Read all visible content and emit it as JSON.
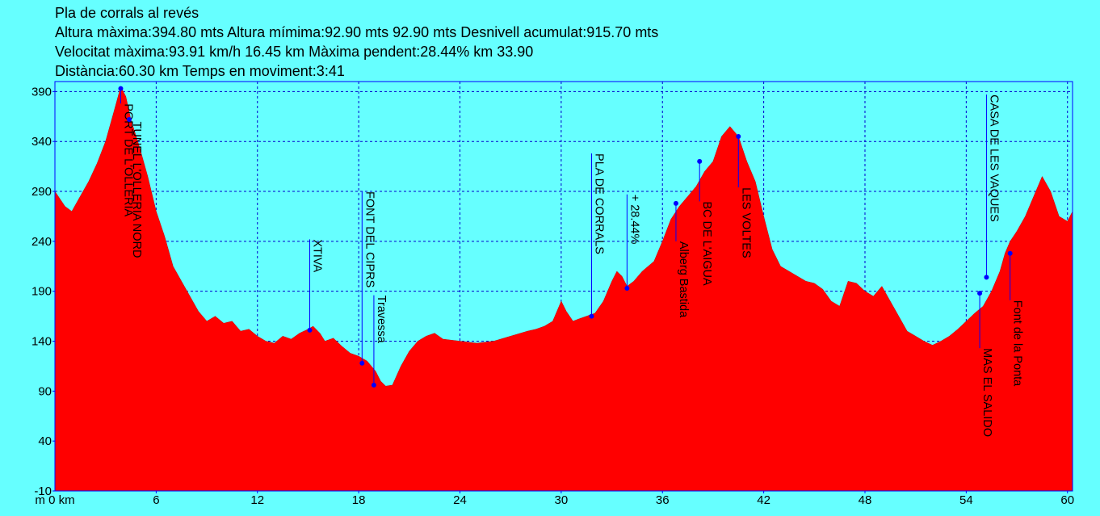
{
  "header": {
    "title": "Pla de corrals al revés",
    "line2": "Altura màxima:394.80 mts Altura mímima:92.90 mts 92.90 mts Desnivell acumulat:915.70 mts",
    "line3": "Velocitat màxima:93.91 km/h 16.45 km Màxima pendent:28.44% km 33.90",
    "line4": "Distància:60.30 km Temps en moviment:3:41"
  },
  "chart_data": {
    "type": "area",
    "title": "",
    "xlabel": "",
    "ylabel": "",
    "xlim": [
      0,
      60.3
    ],
    "ylim": [
      -10,
      400
    ],
    "x_ticks": [
      6,
      12,
      18,
      24,
      30,
      36,
      42,
      48,
      54,
      60
    ],
    "x_tick_labels": [
      "6",
      "12",
      "18",
      "24",
      "30",
      "36",
      "42",
      "48",
      "54",
      "60"
    ],
    "x_origin_label": "m 0 km",
    "y_ticks": [
      -10,
      40,
      90,
      140,
      190,
      240,
      290,
      340,
      390
    ],
    "y_tick_labels": [
      "-10",
      "40",
      "90",
      "140",
      "190",
      "240",
      "290",
      "340",
      "390"
    ],
    "grid": true,
    "colors": {
      "fill": "#FF0000",
      "frame": "#0000FF",
      "grid": "#0000CC",
      "point": "#0000FF",
      "background": "#66FFFF"
    },
    "series": [
      {
        "values": [
          [
            0,
            290
          ],
          [
            0.6,
            275
          ],
          [
            1.0,
            270
          ],
          [
            1.5,
            285
          ],
          [
            2.0,
            300
          ],
          [
            2.5,
            318
          ],
          [
            3.0,
            340
          ],
          [
            3.5,
            370
          ],
          [
            3.9,
            394.8
          ],
          [
            4.2,
            385
          ],
          [
            4.5,
            362
          ],
          [
            5.0,
            335
          ],
          [
            5.5,
            305
          ],
          [
            6.0,
            270
          ],
          [
            6.5,
            245
          ],
          [
            7.0,
            215
          ],
          [
            7.5,
            200
          ],
          [
            8.0,
            185
          ],
          [
            8.5,
            170
          ],
          [
            9.0,
            160
          ],
          [
            9.5,
            165
          ],
          [
            10.0,
            158
          ],
          [
            10.5,
            160
          ],
          [
            11.0,
            150
          ],
          [
            11.5,
            152
          ],
          [
            12.0,
            145
          ],
          [
            12.5,
            140
          ],
          [
            13.0,
            138
          ],
          [
            13.5,
            145
          ],
          [
            14.0,
            142
          ],
          [
            14.5,
            148
          ],
          [
            15.0,
            152
          ],
          [
            15.3,
            155
          ],
          [
            15.7,
            148
          ],
          [
            16.0,
            140
          ],
          [
            16.5,
            143
          ],
          [
            17.0,
            135
          ],
          [
            17.5,
            128
          ],
          [
            18.0,
            125
          ],
          [
            18.5,
            120
          ],
          [
            19.0,
            110
          ],
          [
            19.3,
            100
          ],
          [
            19.6,
            95
          ],
          [
            20.0,
            96
          ],
          [
            20.5,
            115
          ],
          [
            21.0,
            130
          ],
          [
            21.5,
            140
          ],
          [
            22.0,
            145
          ],
          [
            22.5,
            148
          ],
          [
            23.0,
            142
          ],
          [
            24.0,
            140
          ],
          [
            25.0,
            138
          ],
          [
            26.0,
            140
          ],
          [
            27.0,
            145
          ],
          [
            28.0,
            150
          ],
          [
            28.5,
            152
          ],
          [
            29.0,
            155
          ],
          [
            29.5,
            160
          ],
          [
            30.0,
            180
          ],
          [
            30.3,
            170
          ],
          [
            30.7,
            160
          ],
          [
            31.0,
            162
          ],
          [
            31.5,
            165
          ],
          [
            32.0,
            168
          ],
          [
            32.5,
            180
          ],
          [
            33.0,
            200
          ],
          [
            33.3,
            210
          ],
          [
            33.6,
            205
          ],
          [
            33.9,
            195
          ],
          [
            34.3,
            200
          ],
          [
            34.8,
            210
          ],
          [
            35.5,
            220
          ],
          [
            36.0,
            240
          ],
          [
            36.5,
            262
          ],
          [
            37.0,
            275
          ],
          [
            37.5,
            285
          ],
          [
            38.0,
            295
          ],
          [
            38.5,
            310
          ],
          [
            39.0,
            320
          ],
          [
            39.5,
            345
          ],
          [
            40.0,
            355
          ],
          [
            40.5,
            345
          ],
          [
            41.0,
            320
          ],
          [
            41.5,
            300
          ],
          [
            42.0,
            265
          ],
          [
            42.5,
            232
          ],
          [
            43.0,
            215
          ],
          [
            44.0,
            205
          ],
          [
            44.5,
            200
          ],
          [
            45.0,
            198
          ],
          [
            45.5,
            192
          ],
          [
            46.0,
            180
          ],
          [
            46.5,
            175
          ],
          [
            47.0,
            200
          ],
          [
            47.5,
            198
          ],
          [
            48.0,
            190
          ],
          [
            48.5,
            185
          ],
          [
            49.0,
            195
          ],
          [
            49.5,
            180
          ],
          [
            50.0,
            165
          ],
          [
            50.5,
            150
          ],
          [
            51.0,
            145
          ],
          [
            51.5,
            140
          ],
          [
            52.0,
            136
          ],
          [
            52.5,
            140
          ],
          [
            53.0,
            145
          ],
          [
            53.5,
            152
          ],
          [
            54.0,
            160
          ],
          [
            54.5,
            168
          ],
          [
            55.0,
            175
          ],
          [
            55.5,
            190
          ],
          [
            56.0,
            210
          ],
          [
            56.3,
            228
          ],
          [
            56.6,
            240
          ],
          [
            57.0,
            250
          ],
          [
            57.5,
            265
          ],
          [
            58.0,
            285
          ],
          [
            58.5,
            305
          ],
          [
            59.0,
            290
          ],
          [
            59.5,
            265
          ],
          [
            60.0,
            260
          ],
          [
            60.3,
            270
          ]
        ]
      }
    ],
    "waypoints": [
      {
        "label": "PORT DE L'OLLERIA",
        "x": 3.9,
        "y": 393,
        "label_y_top": 378
      },
      {
        "label": "TUNEL L'OLLERIA NORD",
        "x": 4.4,
        "y": 362,
        "label_y_top": 360
      },
      {
        "label": "XTIVA",
        "x": 15.1,
        "y": 151,
        "label_y_top": 242
      },
      {
        "label": "FONT DEL CIPRS",
        "x": 18.2,
        "y": 118,
        "label_y_top": 290
      },
      {
        "label": "Travessa",
        "x": 18.9,
        "y": 96,
        "label_y_top": 186
      },
      {
        "label": "PLA DE CORRALS",
        "x": 31.8,
        "y": 165,
        "label_y_top": 328
      },
      {
        "label": "+ 28.44%",
        "x": 33.9,
        "y": 193,
        "label_y_top": 287
      },
      {
        "label": "Alberg Bastida",
        "x": 36.8,
        "y": 278,
        "label_y_top": 240
      },
      {
        "label": "BC DE L'AIGUA",
        "x": 38.2,
        "y": 320,
        "label_y_top": 280
      },
      {
        "label": "LES VOLTES",
        "x": 40.5,
        "y": 345,
        "label_y_top": 294
      },
      {
        "label": "MAS EL SALIDO",
        "x": 54.8,
        "y": 188,
        "label_y_top": 133
      },
      {
        "label": "CASA DE LES VAQUES",
        "x": 55.2,
        "y": 204,
        "label_y_top": 387
      },
      {
        "label": "Font de la Ponta",
        "x": 56.6,
        "y": 228,
        "label_y_top": 181
      }
    ]
  }
}
